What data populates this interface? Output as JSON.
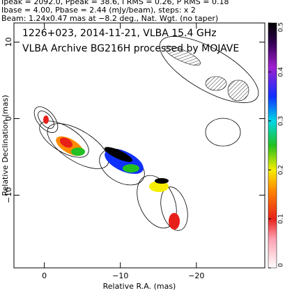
{
  "chart_data": {
    "type": "image",
    "header_lines": [
      "Ipeak = 2092.0, Ppeak = 38.6, I RMS = 0.26, P RMS = 0.18",
      "Ibase = 4.00, Pbase = 2.44 (mJy/beam), steps: x 2",
      "Beam: 1.24x0.47 mas at −8.2 deg., Nat. Wgt. (no taper)"
    ],
    "annotations": [
      "1226+023, 2014-11-21, VLBA 15.4 GHz",
      "VLBA Archive BG216H processed by MOJAVE"
    ],
    "xlabel": "Relative R.A. (mas)",
    "ylabel": "Relative Declination (mas)",
    "xlim": [
      4,
      -29
    ],
    "xticks": [
      0,
      {
        "value": -10,
        "label": "−10"
      },
      {
        "value": -20,
        "label": "−20"
      }
    ],
    "ylim": [
      -19.5,
      12.5
    ],
    "yticks": [
      {
        "value": -10,
        "label": "−10"
      },
      0,
      10
    ],
    "colorbar": {
      "lim": [
        0,
        0.5
      ],
      "ticks": [
        0,
        0.1,
        0.2,
        0.3,
        0.4,
        0.5
      ]
    }
  }
}
